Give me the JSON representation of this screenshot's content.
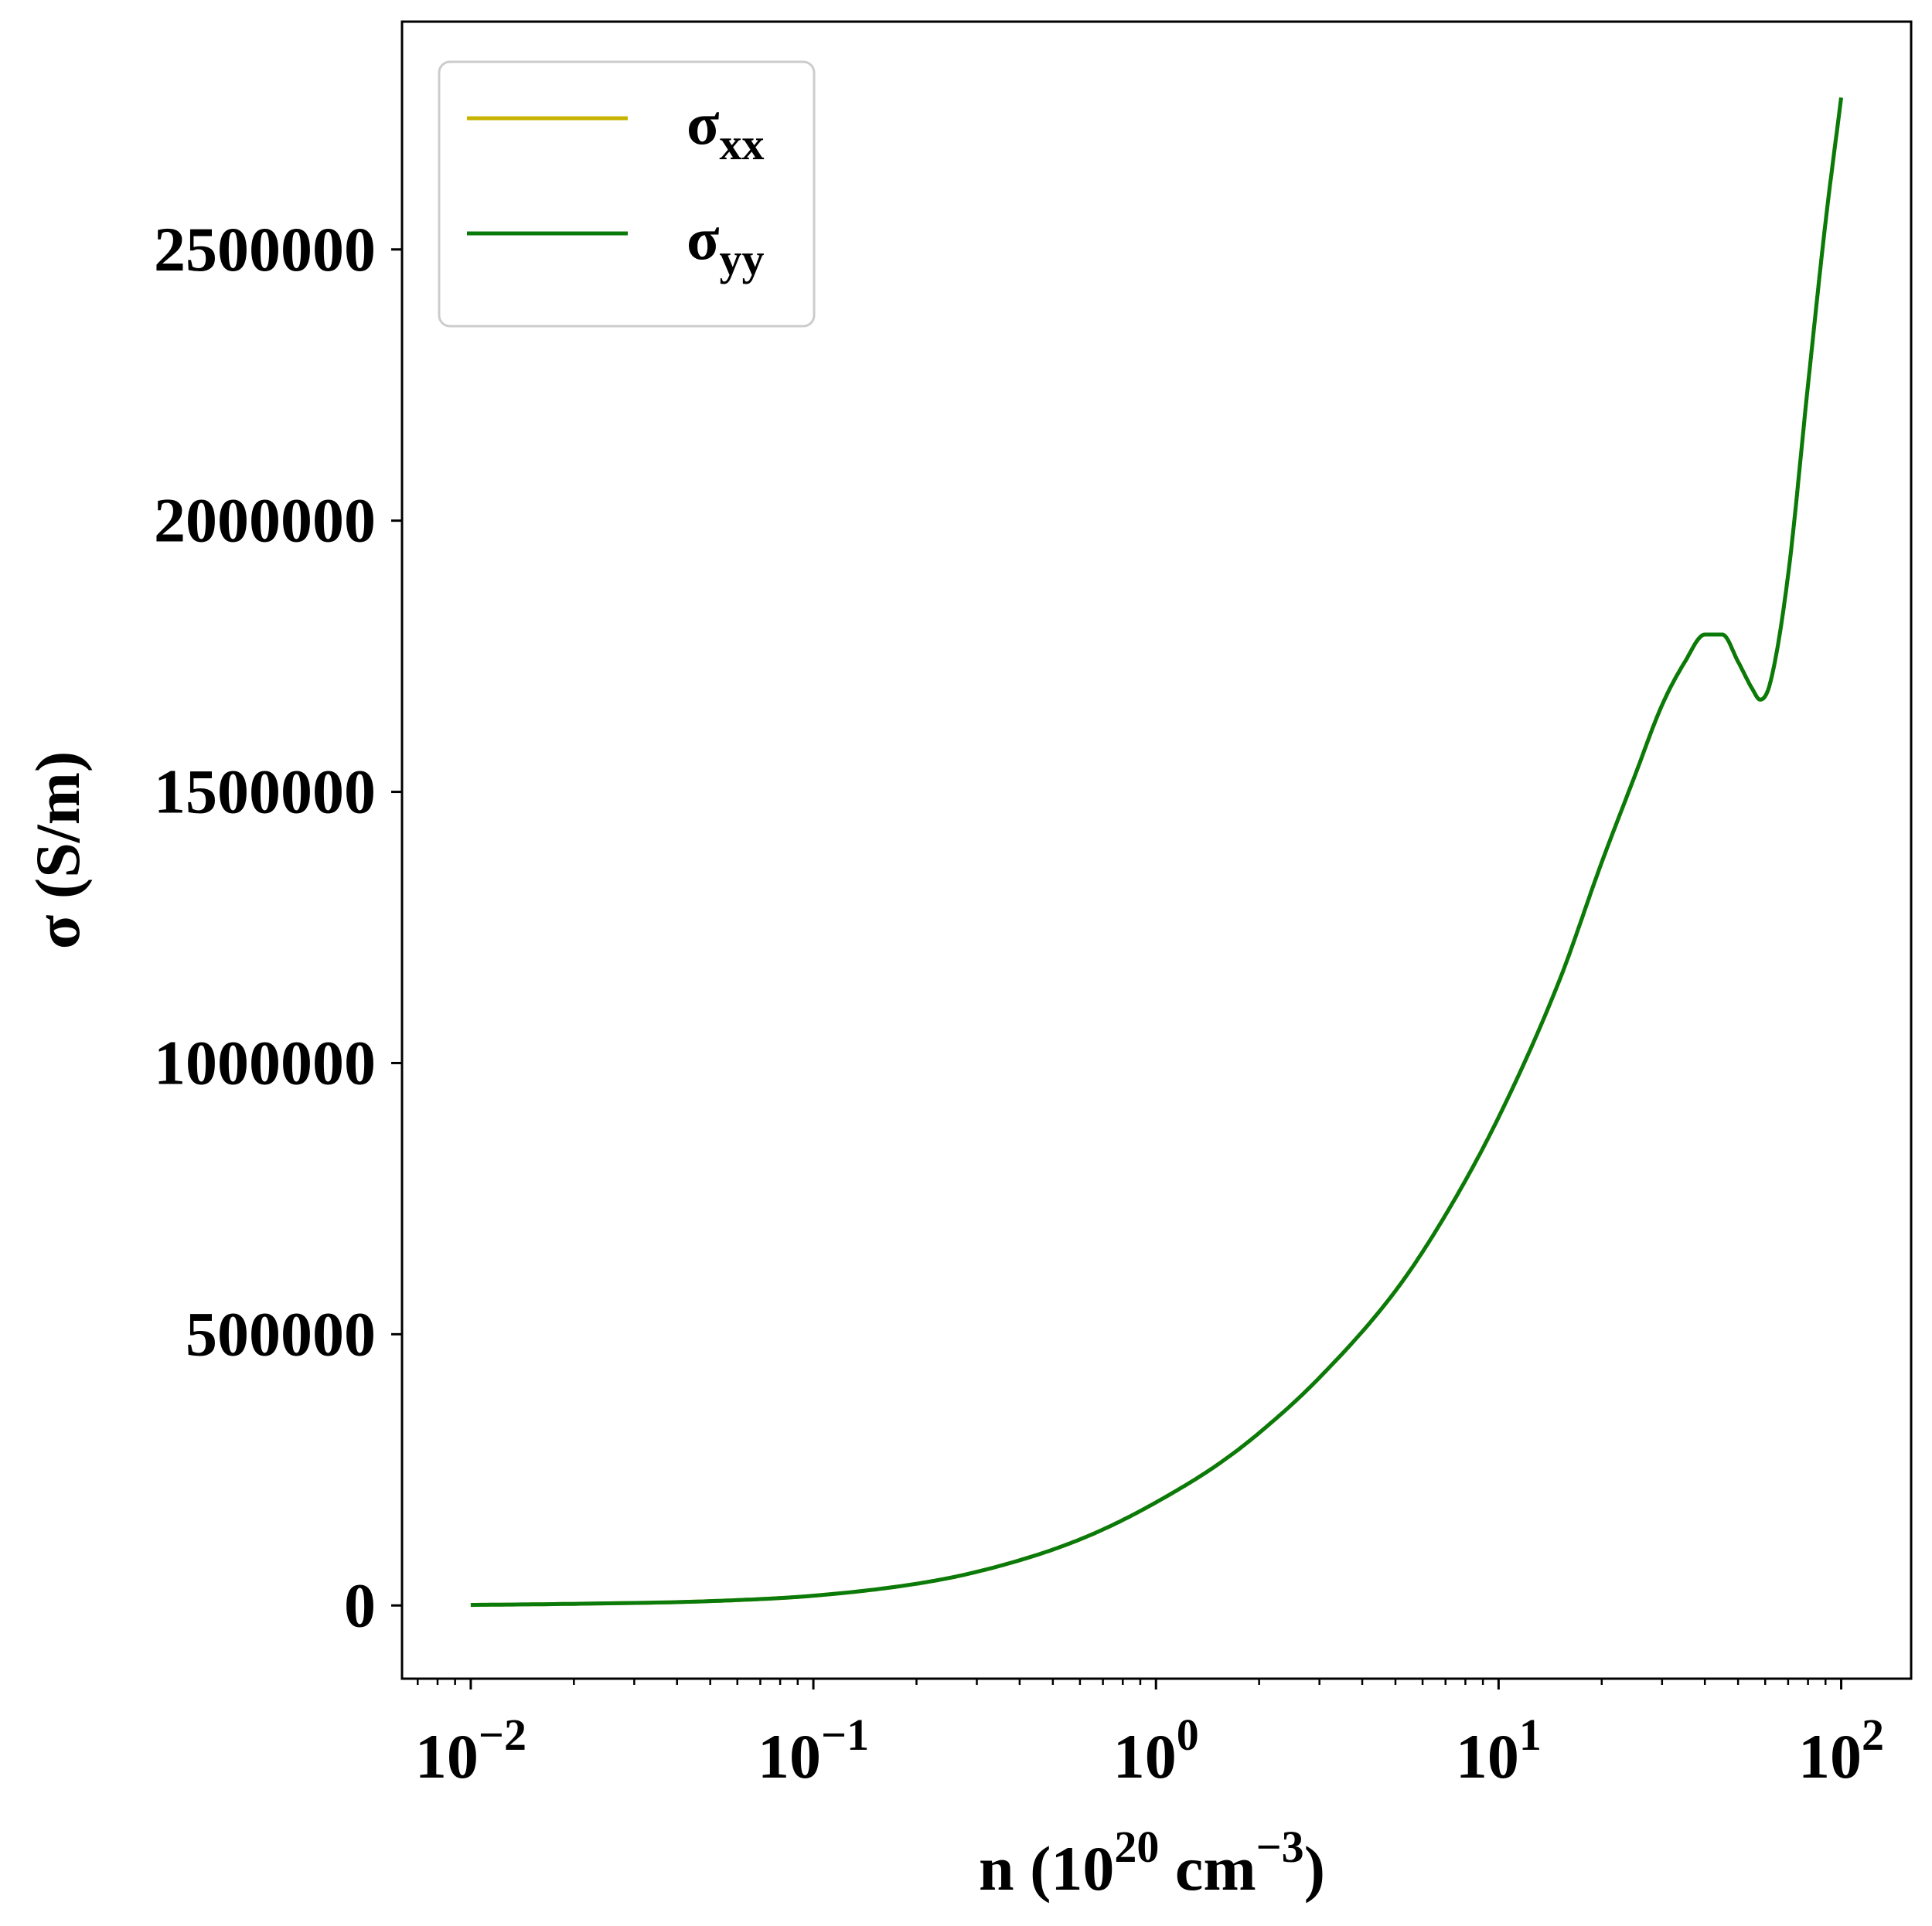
{
  "chart_data": {
    "type": "line",
    "xscale": "log",
    "xlim": [
      0.0063,
      160
    ],
    "ylim": [
      -135000,
      2920000
    ],
    "xlabel": {
      "prefix": "n (10",
      "sup1": "20",
      "middle": " cm",
      "sup2": "−3",
      "suffix": ")"
    },
    "ylabel": "σ (S/m)",
    "x_ticks": [
      {
        "value": 0.01,
        "base": "10",
        "exp": "−2"
      },
      {
        "value": 0.1,
        "base": "10",
        "exp": "−1"
      },
      {
        "value": 1,
        "base": "10",
        "exp": "0"
      },
      {
        "value": 10,
        "base": "10",
        "exp": "1"
      },
      {
        "value": 100,
        "base": "10",
        "exp": "2"
      }
    ],
    "y_ticks": [
      {
        "value": 0,
        "label": "0"
      },
      {
        "value": 500000,
        "label": "500000"
      },
      {
        "value": 1000000,
        "label": "1000000"
      },
      {
        "value": 1500000,
        "label": "1500000"
      },
      {
        "value": 2000000,
        "label": "2000000"
      },
      {
        "value": 2500000,
        "label": "2500000"
      }
    ],
    "legend": {
      "placement": "top-left",
      "entries": [
        {
          "series_index": 0,
          "symbol": "σ",
          "subscript": "xx"
        },
        {
          "series_index": 1,
          "symbol": "σ",
          "subscript": "yy"
        }
      ]
    },
    "grid": false,
    "series": [
      {
        "name": "σxx",
        "color": "#c8b400",
        "x": [
          0.01,
          0.02,
          0.05,
          0.1,
          0.2,
          0.3,
          0.5,
          0.7,
          1,
          1.5,
          2,
          3,
          5,
          7,
          10,
          15,
          20,
          25,
          30,
          35,
          40,
          45,
          50,
          55,
          58,
          62,
          70,
          80,
          90,
          100
        ],
        "y": [
          1000,
          3000,
          8000,
          18000,
          40000,
          62000,
          103000,
          140000,
          190000,
          258000,
          318000,
          420000,
          580000,
          720000,
          900000,
          1150000,
          1370000,
          1530000,
          1660000,
          1740000,
          1790000,
          1790000,
          1740000,
          1690000,
          1670000,
          1700000,
          1900000,
          2250000,
          2550000,
          2780000
        ]
      },
      {
        "name": "σyy",
        "color": "#0a7a0a",
        "x": [
          0.01,
          0.02,
          0.05,
          0.1,
          0.2,
          0.3,
          0.5,
          0.7,
          1,
          1.5,
          2,
          3,
          5,
          7,
          10,
          15,
          20,
          25,
          30,
          35,
          40,
          45,
          50,
          55,
          58,
          62,
          70,
          80,
          90,
          100
        ],
        "y": [
          1000,
          3000,
          8000,
          18000,
          40000,
          62000,
          103000,
          140000,
          190000,
          258000,
          318000,
          420000,
          580000,
          720000,
          900000,
          1150000,
          1370000,
          1530000,
          1660000,
          1740000,
          1790000,
          1790000,
          1740000,
          1690000,
          1670000,
          1700000,
          1900000,
          2250000,
          2550000,
          2780000
        ]
      }
    ]
  }
}
